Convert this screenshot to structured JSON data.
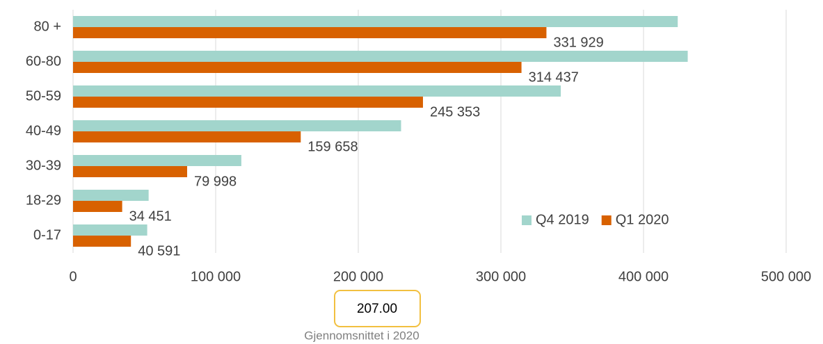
{
  "chart_data": {
    "type": "barh",
    "categories": [
      "80 +",
      "60-80",
      "50-59",
      "40-49",
      "30-39",
      "18-29",
      "0-17"
    ],
    "series": [
      {
        "name": "Q4 2019",
        "color": "#a2d5cc",
        "values": [
          424000,
          431000,
          342000,
          230000,
          118000,
          53000,
          52000
        ]
      },
      {
        "name": "Q1 2020",
        "color": "#d86100",
        "values": [
          331929,
          314437,
          245353,
          159658,
          79998,
          34451,
          40591
        ],
        "value_labels": [
          "331 929",
          "314 437",
          "245 353",
          "159 658",
          "79 998",
          "34 451",
          "40 591"
        ]
      }
    ],
    "xlim": [
      0,
      500000
    ],
    "xticks": [
      0,
      {
        "value": 100000,
        "label": "100 000"
      },
      {
        "value": 200000,
        "label": "200 000"
      },
      {
        "value": 300000,
        "label": "300 000"
      },
      {
        "value": 400000,
        "label": "400 000"
      },
      {
        "value": 500000,
        "label": "500 000"
      }
    ],
    "grid": true,
    "legend": "lower right"
  },
  "summary": {
    "value": "207.00",
    "caption": "Gjennomsnittet i 2020"
  }
}
